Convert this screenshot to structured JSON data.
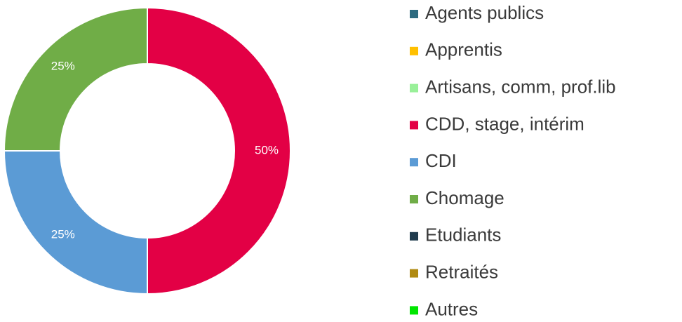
{
  "chart_data": {
    "type": "donut",
    "categories": [
      "Agents publics",
      "Apprentis",
      "Artisans, comm,  prof.lib",
      "CDD, stage, intérim",
      "CDI",
      "Chomage",
      "Etudiants",
      "Retraités",
      "Autres"
    ],
    "values": [
      0,
      0,
      0,
      50,
      25,
      25,
      0,
      0,
      0
    ],
    "value_labels": [
      null,
      null,
      null,
      "50%",
      "25%",
      "25%",
      null,
      null,
      null
    ],
    "colors": [
      "#2e6b80",
      "#ffc000",
      "#99f099",
      "#e30045",
      "#5b9bd5",
      "#70ad47",
      "#1f3b4d",
      "#b08a12",
      "#00e600"
    ],
    "legend": "right"
  }
}
